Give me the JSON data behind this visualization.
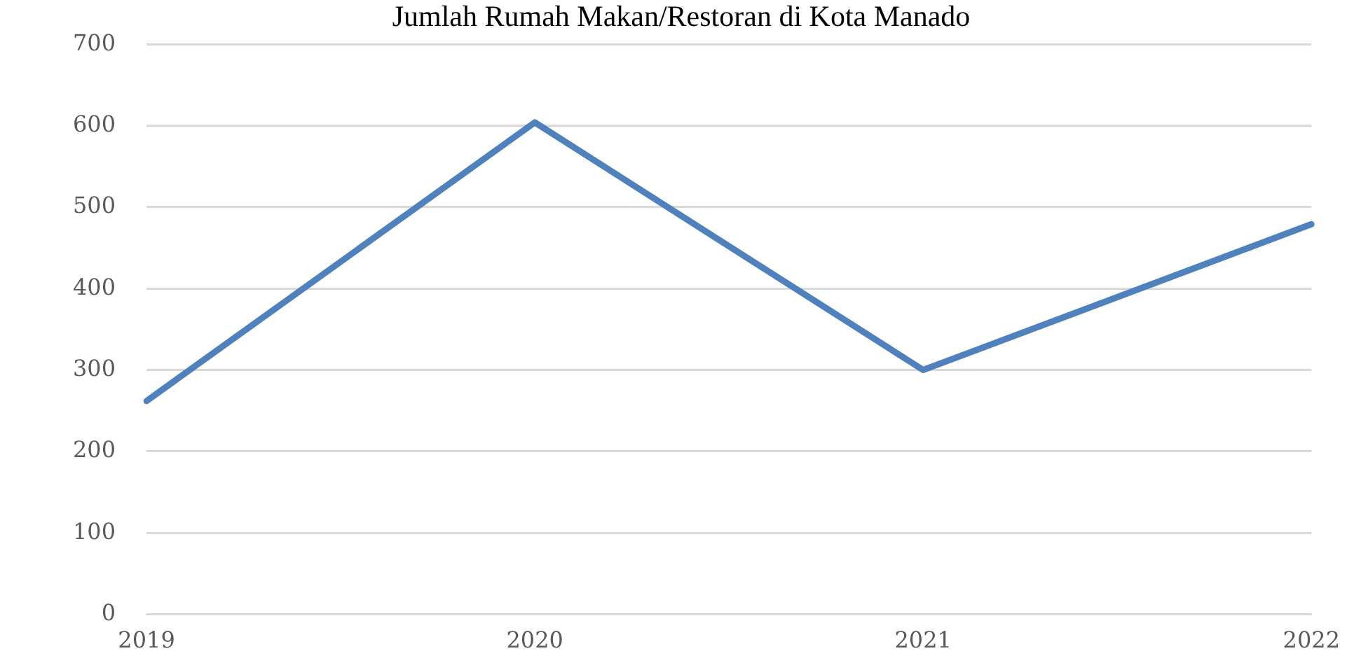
{
  "chart_data": {
    "type": "line",
    "title": "Jumlah Rumah Makan/Restoran di Kota Manado",
    "categories": [
      "2019",
      "2020",
      "2021",
      "2022"
    ],
    "series": [
      {
        "color": "#4f81bd",
        "values": [
          262,
          604,
          300,
          479
        ]
      }
    ],
    "ylim": [
      0,
      700
    ],
    "yticks": [
      0,
      100,
      200,
      300,
      400,
      500,
      600,
      700
    ],
    "grid": "y",
    "legend": false,
    "marker": "none"
  }
}
